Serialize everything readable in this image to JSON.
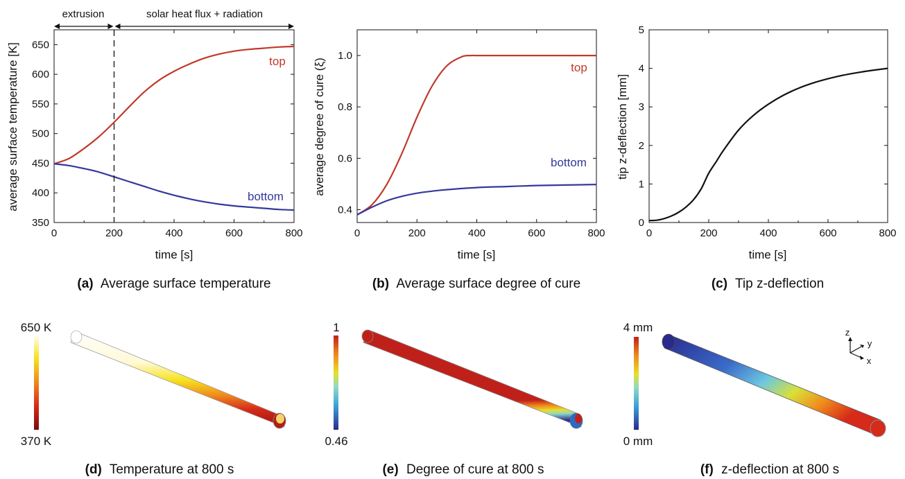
{
  "chart_data": [
    {
      "type": "line",
      "panel": "(a)",
      "caption": "Average surface temperature",
      "xlabel": "time [s]",
      "ylabel": "average surface temperature [K]",
      "xlim": [
        0,
        800
      ],
      "ylim": [
        350,
        675
      ],
      "xticks": [
        0,
        200,
        400,
        600,
        800
      ],
      "yticks": [
        350,
        400,
        450,
        500,
        550,
        600,
        650
      ],
      "phase_divider_x": 200,
      "phase_labels": [
        "extrusion",
        "solar heat flux + radiation"
      ],
      "series": [
        {
          "name": "top",
          "color": "#c0392b",
          "x": [
            0,
            50,
            100,
            150,
            200,
            250,
            300,
            350,
            400,
            450,
            500,
            550,
            600,
            650,
            700,
            750,
            800
          ],
          "y": [
            449,
            458,
            475,
            495,
            519,
            545,
            570,
            590,
            605,
            617,
            627,
            634,
            639,
            642,
            644,
            646,
            647
          ]
        },
        {
          "name": "bottom",
          "color": "#33399a",
          "x": [
            0,
            50,
            100,
            150,
            200,
            250,
            300,
            350,
            400,
            450,
            500,
            550,
            600,
            650,
            700,
            750,
            800
          ],
          "y": [
            449,
            446,
            441,
            435,
            427,
            419,
            411,
            403,
            396,
            390,
            385,
            381,
            378,
            376,
            374,
            372,
            371
          ]
        }
      ]
    },
    {
      "type": "line",
      "panel": "(b)",
      "caption": "Average surface degree of cure",
      "xlabel": "time [s]",
      "ylabel": "average degree of cure (ξ)",
      "xlim": [
        0,
        800
      ],
      "ylim": [
        0.35,
        1.1
      ],
      "xticks": [
        0,
        200,
        400,
        600,
        800
      ],
      "yticks": [
        0.4,
        0.6,
        0.8,
        1.0
      ],
      "series": [
        {
          "name": "top",
          "color": "#c0392b",
          "x": [
            0,
            50,
            100,
            150,
            200,
            250,
            300,
            350,
            380,
            400,
            450,
            500,
            600,
            700,
            800
          ],
          "y": [
            0.38,
            0.42,
            0.5,
            0.62,
            0.76,
            0.88,
            0.96,
            0.995,
            1.0,
            1.0,
            1.0,
            1.0,
            1.0,
            1.0,
            1.0
          ]
        },
        {
          "name": "bottom",
          "color": "#33399a",
          "x": [
            0,
            50,
            100,
            150,
            200,
            250,
            300,
            400,
            500,
            600,
            700,
            800
          ],
          "y": [
            0.38,
            0.41,
            0.435,
            0.452,
            0.464,
            0.472,
            0.478,
            0.486,
            0.49,
            0.494,
            0.496,
            0.498
          ]
        }
      ]
    },
    {
      "type": "line",
      "panel": "(c)",
      "caption": "Tip z-deflection",
      "xlabel": "time [s]",
      "ylabel": "tip z-deflection [mm]",
      "xlim": [
        0,
        800
      ],
      "ylim": [
        0,
        5
      ],
      "xticks": [
        0,
        200,
        400,
        600,
        800
      ],
      "yticks": [
        0,
        1,
        2,
        3,
        4,
        5
      ],
      "series": [
        {
          "name": "",
          "color": "#111111",
          "x": [
            0,
            25,
            50,
            75,
            100,
            125,
            150,
            175,
            200,
            225,
            250,
            300,
            350,
            400,
            450,
            500,
            550,
            600,
            650,
            700,
            750,
            800
          ],
          "y": [
            0.05,
            0.06,
            0.1,
            0.17,
            0.27,
            0.41,
            0.6,
            0.88,
            1.28,
            1.58,
            1.88,
            2.4,
            2.78,
            3.07,
            3.3,
            3.48,
            3.62,
            3.73,
            3.82,
            3.89,
            3.95,
            4.0
          ]
        }
      ]
    }
  ],
  "panels_bottom": [
    {
      "panel": "(d)",
      "caption": "Temperature at 800 s",
      "cbar_max": "650 K",
      "cbar_min": "370 K"
    },
    {
      "panel": "(e)",
      "caption": "Degree of cure at 800 s",
      "cbar_max": "1",
      "cbar_min": "0.46"
    },
    {
      "panel": "(f)",
      "caption": "z-deflection at 800 s",
      "cbar_max": "4 mm",
      "cbar_min": "0 mm",
      "triad": {
        "z": "z",
        "y": "y",
        "x": "x"
      }
    }
  ],
  "colors": {
    "top": "#c0392b",
    "bottom": "#33399a",
    "axis": "#111111",
    "divider": "#111111"
  }
}
